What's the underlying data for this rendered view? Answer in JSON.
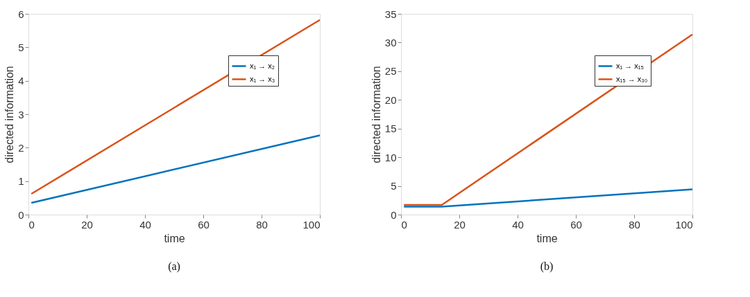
{
  "chart_data": [
    {
      "type": "line",
      "xlabel": "time",
      "ylabel": "directed information",
      "annotations": [
        "(a)"
      ],
      "xlim": [
        0,
        100
      ],
      "xticks": [
        0,
        20,
        40,
        60,
        80,
        100
      ],
      "ylim": [
        0,
        6
      ],
      "yticks": [
        0,
        1,
        2,
        3,
        4,
        5,
        6
      ],
      "grid": false,
      "legend": "top right",
      "line_style": "solid",
      "marker": "none",
      "series": [
        {
          "name": "x₁ → x₂",
          "color": "#0072bd",
          "x": [
            1,
            100
          ],
          "values": [
            0.35,
            2.37
          ]
        },
        {
          "name": "x₁ → x₃",
          "color": "#d95319",
          "x": [
            1,
            100
          ],
          "values": [
            0.62,
            5.82
          ]
        }
      ]
    },
    {
      "type": "line",
      "xlabel": "time",
      "ylabel": "directed information",
      "annotations": [
        "(b)"
      ],
      "xlim": [
        0,
        100
      ],
      "xticks": [
        0,
        20,
        40,
        60,
        80,
        100
      ],
      "ylim": [
        0,
        35
      ],
      "yticks": [
        0,
        5,
        10,
        15,
        20,
        25,
        30,
        35
      ],
      "grid": false,
      "legend": "top right",
      "line_style": "solid",
      "marker": "none",
      "series": [
        {
          "name": "x₁ → x₁₅",
          "color": "#0072bd",
          "x": [
            1,
            14,
            100
          ],
          "values": [
            1.4,
            1.4,
            4.4
          ]
        },
        {
          "name": "x₁₅ → x₃₀",
          "color": "#d95319",
          "x": [
            1,
            14,
            100
          ],
          "values": [
            1.7,
            1.7,
            31.4
          ]
        }
      ]
    }
  ]
}
